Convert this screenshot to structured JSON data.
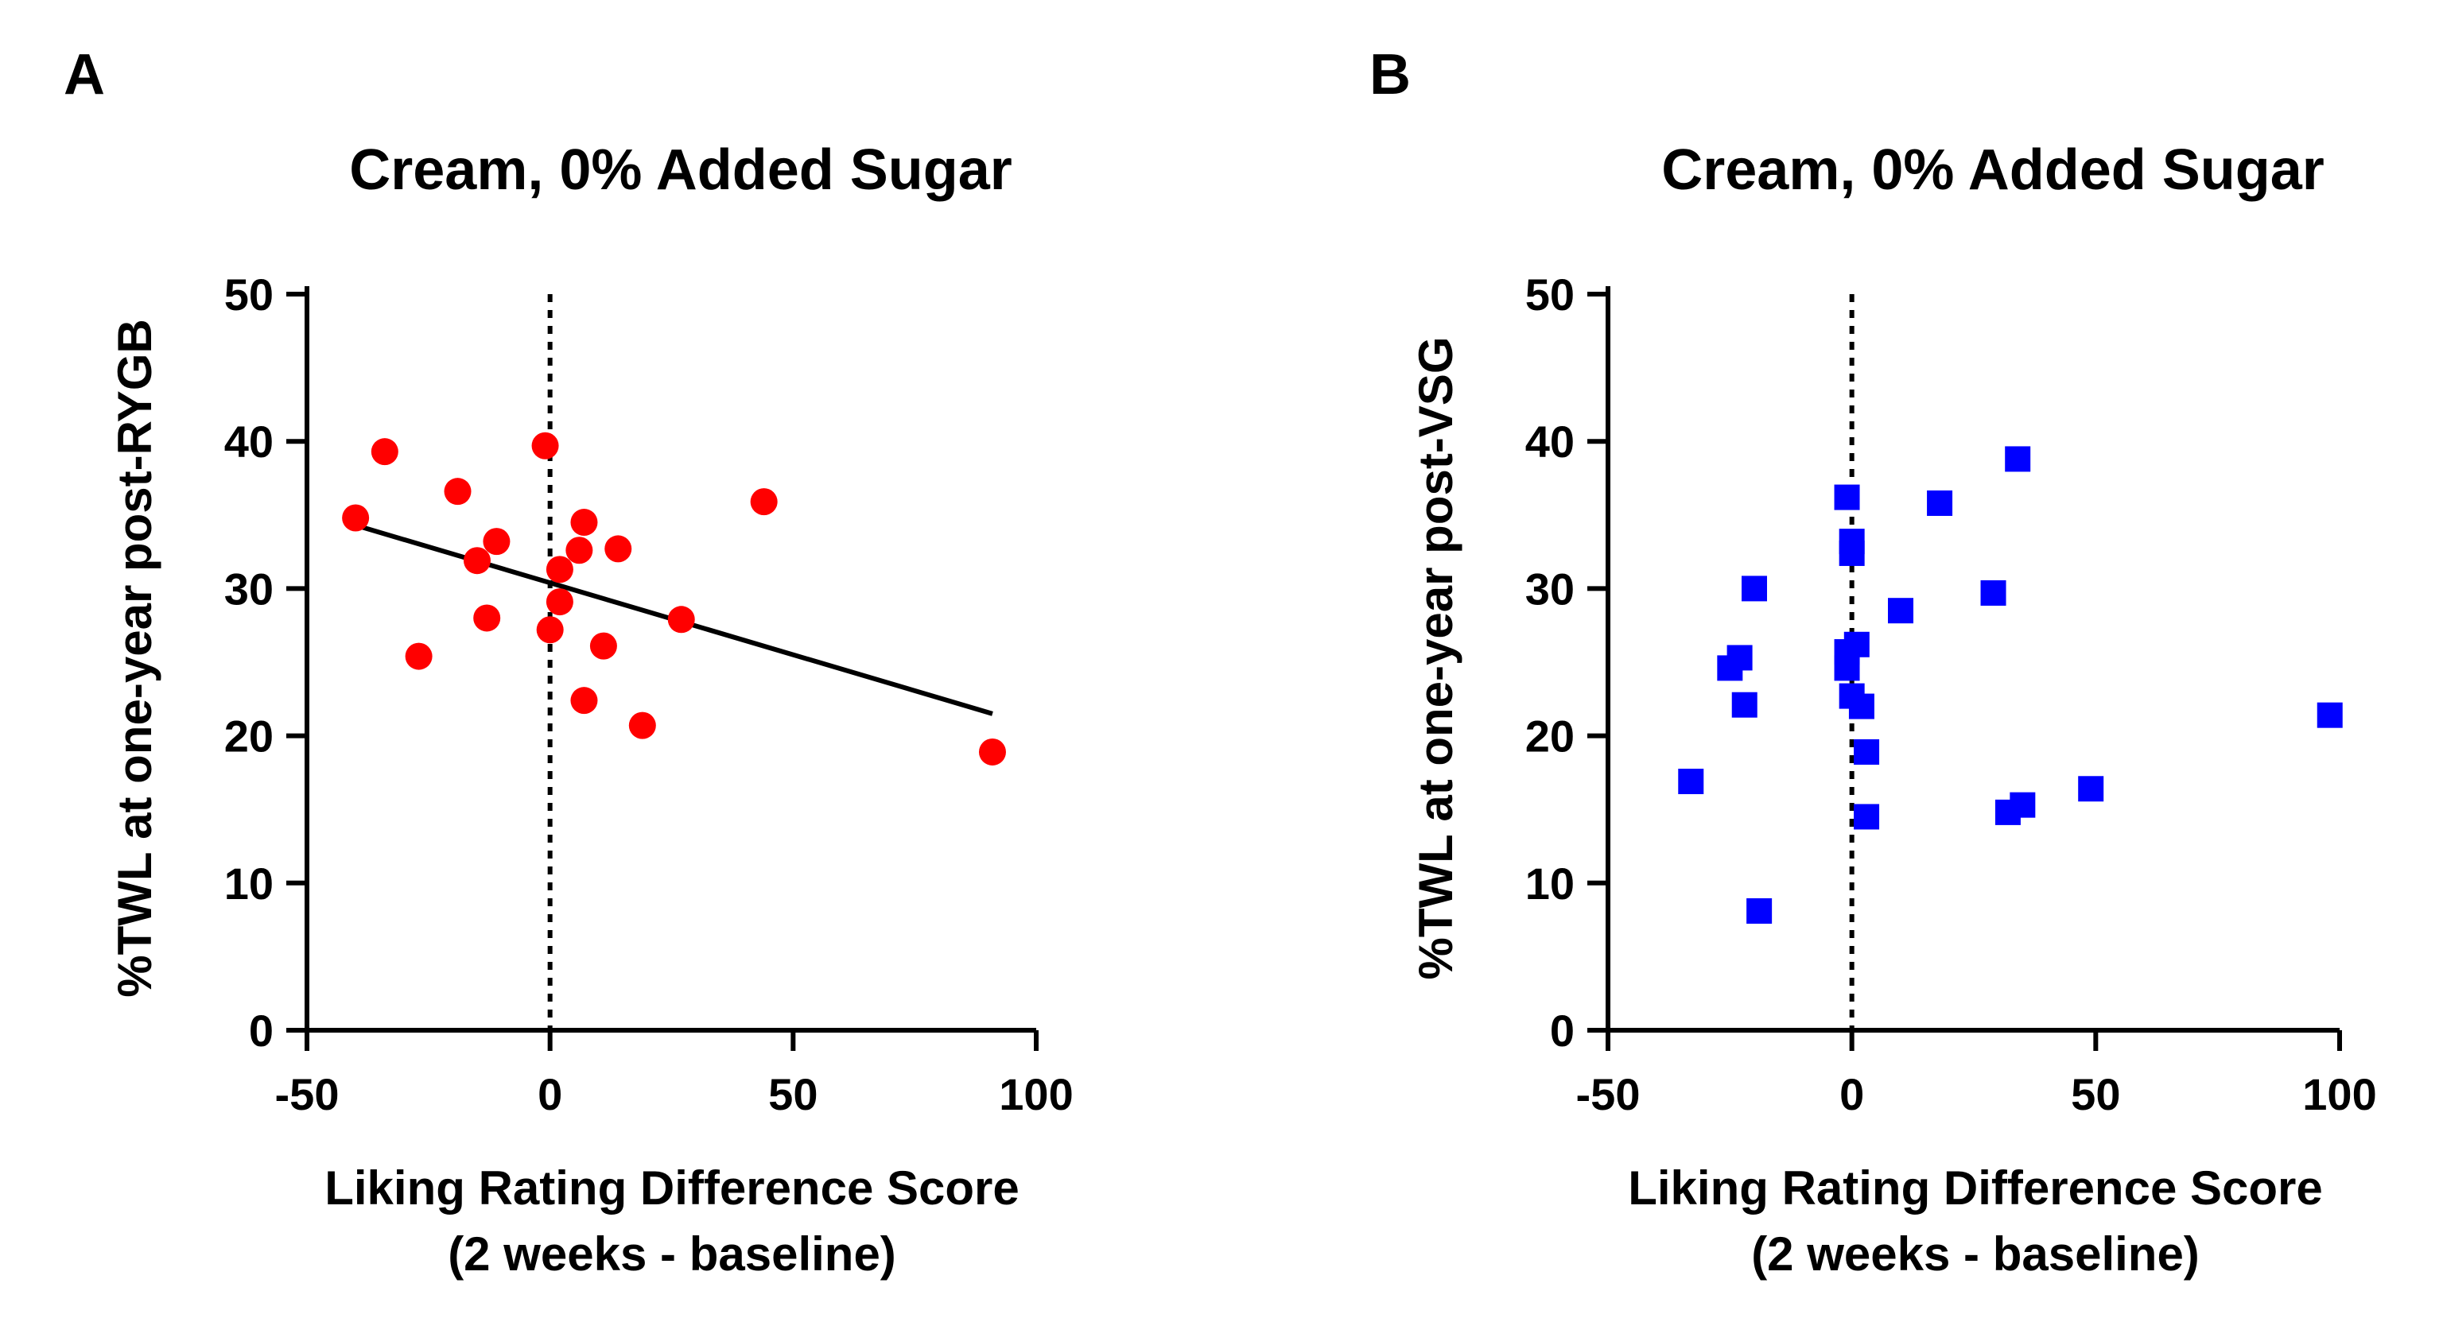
{
  "chart_data": [
    {
      "panel": "A",
      "type": "scatter",
      "title": "Cream, 0% Added Sugar",
      "xlabel_lines": [
        "Liking Rating Difference Score",
        "(2 weeks - baseline)"
      ],
      "ylabel": "%TWL at one-year post-RYGB",
      "xlim": [
        -50,
        100
      ],
      "ylim": [
        0,
        50
      ],
      "xticks": [
        -50,
        0,
        50,
        100
      ],
      "yticks": [
        0,
        10,
        20,
        30,
        40,
        50
      ],
      "xtick_labels": [
        "-50",
        "0",
        "50",
        "100"
      ],
      "ytick_labels": [
        "0",
        "10",
        "20",
        "30",
        "40",
        "50"
      ],
      "marker": "circle",
      "color": "#ff0000",
      "reference_line_x": 0,
      "fit_line": {
        "x": [
          -40,
          91
        ],
        "y": [
          34.3,
          21.5
        ]
      },
      "points": [
        {
          "x": -40,
          "y": 34.8
        },
        {
          "x": -34,
          "y": 39.3
        },
        {
          "x": -27,
          "y": 25.4
        },
        {
          "x": -19,
          "y": 36.6
        },
        {
          "x": -15,
          "y": 31.9
        },
        {
          "x": -13,
          "y": 28.0
        },
        {
          "x": -11,
          "y": 33.2
        },
        {
          "x": -1,
          "y": 39.7
        },
        {
          "x": 0,
          "y": 27.2
        },
        {
          "x": 2,
          "y": 31.3
        },
        {
          "x": 2,
          "y": 29.1
        },
        {
          "x": 6,
          "y": 32.6
        },
        {
          "x": 7,
          "y": 34.5
        },
        {
          "x": 7,
          "y": 22.4
        },
        {
          "x": 11,
          "y": 26.1
        },
        {
          "x": 14,
          "y": 32.7
        },
        {
          "x": 19,
          "y": 20.7
        },
        {
          "x": 27,
          "y": 27.9
        },
        {
          "x": 44,
          "y": 35.9
        },
        {
          "x": 91,
          "y": 18.9
        }
      ]
    },
    {
      "panel": "B",
      "type": "scatter",
      "title": "Cream, 0% Added Sugar",
      "xlabel_lines": [
        "Liking Rating Difference Score",
        "(2 weeks - baseline)"
      ],
      "ylabel": "%TWL at one-year post-VSG",
      "xlim": [
        -50,
        100
      ],
      "ylim": [
        0,
        50
      ],
      "xticks": [
        -50,
        0,
        50,
        100
      ],
      "yticks": [
        0,
        10,
        20,
        30,
        40,
        50
      ],
      "xtick_labels": [
        "-50",
        "0",
        "50",
        "100"
      ],
      "ytick_labels": [
        "0",
        "10",
        "20",
        "30",
        "40",
        "50"
      ],
      "marker": "square",
      "color": "#0000ff",
      "reference_line_x": 0,
      "points": [
        {
          "x": -33,
          "y": 16.9
        },
        {
          "x": -25,
          "y": 24.6
        },
        {
          "x": -23,
          "y": 25.3
        },
        {
          "x": -22,
          "y": 22.1
        },
        {
          "x": -20,
          "y": 30.0
        },
        {
          "x": -19,
          "y": 8.1
        },
        {
          "x": -1,
          "y": 36.2
        },
        {
          "x": -1,
          "y": 24.6
        },
        {
          "x": -1,
          "y": 25.7
        },
        {
          "x": 0,
          "y": 33.2
        },
        {
          "x": 0,
          "y": 32.4
        },
        {
          "x": 0,
          "y": 22.7
        },
        {
          "x": 1,
          "y": 26.2
        },
        {
          "x": 2,
          "y": 22.0
        },
        {
          "x": 3,
          "y": 18.9
        },
        {
          "x": 3,
          "y": 14.5
        },
        {
          "x": 10,
          "y": 28.5
        },
        {
          "x": 18,
          "y": 35.8
        },
        {
          "x": 29,
          "y": 29.7
        },
        {
          "x": 32,
          "y": 14.8
        },
        {
          "x": 34,
          "y": 38.8
        },
        {
          "x": 35,
          "y": 15.3
        },
        {
          "x": 49,
          "y": 16.4
        },
        {
          "x": 98,
          "y": 21.4
        }
      ]
    }
  ]
}
